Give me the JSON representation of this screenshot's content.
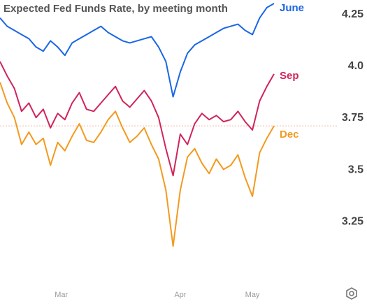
{
  "chart_data": {
    "type": "line",
    "title": "Expected Fed Funds Rate, by meeting month",
    "xlabel": "",
    "ylabel": "",
    "x_ticks": [
      "Mar",
      "Apr",
      "May"
    ],
    "y_ticks": [
      "4.25",
      "4.0",
      "3.75",
      "3.5",
      "3.25"
    ],
    "ylim": [
      3.07,
      4.31
    ],
    "grid": false,
    "reference_line": 3.71,
    "x": [
      0,
      2,
      4,
      6,
      8,
      10,
      12,
      14,
      16,
      18,
      20,
      22,
      24,
      26,
      28,
      30,
      32,
      34,
      36,
      38,
      40,
      42,
      44,
      46,
      48,
      50,
      52,
      54,
      56,
      58,
      60,
      62,
      64,
      66,
      68,
      70,
      72,
      74,
      76
    ],
    "series": [
      {
        "name": "June",
        "color": "#1a66e5",
        "values": [
          4.23,
          4.19,
          4.17,
          4.15,
          4.13,
          4.09,
          4.07,
          4.12,
          4.09,
          4.05,
          4.11,
          4.13,
          4.15,
          4.17,
          4.19,
          4.16,
          4.14,
          4.12,
          4.11,
          4.12,
          4.13,
          4.14,
          4.09,
          4.02,
          3.85,
          3.97,
          4.06,
          4.1,
          4.12,
          4.14,
          4.16,
          4.18,
          4.19,
          4.2,
          4.17,
          4.15,
          4.23,
          4.28,
          4.3
        ]
      },
      {
        "name": "Sep",
        "color": "#d0245a",
        "values": [
          4.02,
          3.95,
          3.89,
          3.78,
          3.82,
          3.75,
          3.79,
          3.7,
          3.77,
          3.74,
          3.82,
          3.87,
          3.79,
          3.78,
          3.82,
          3.86,
          3.9,
          3.83,
          3.8,
          3.84,
          3.88,
          3.83,
          3.75,
          3.6,
          3.47,
          3.67,
          3.62,
          3.72,
          3.77,
          3.74,
          3.76,
          3.73,
          3.74,
          3.78,
          3.73,
          3.69,
          3.83,
          3.9,
          3.96
        ]
      },
      {
        "name": "Dec",
        "color": "#f39a1e",
        "values": [
          3.92,
          3.82,
          3.75,
          3.62,
          3.68,
          3.62,
          3.65,
          3.52,
          3.63,
          3.59,
          3.66,
          3.72,
          3.64,
          3.63,
          3.68,
          3.74,
          3.78,
          3.7,
          3.63,
          3.66,
          3.7,
          3.62,
          3.55,
          3.4,
          3.13,
          3.4,
          3.56,
          3.6,
          3.53,
          3.48,
          3.55,
          3.5,
          3.52,
          3.57,
          3.46,
          3.37,
          3.58,
          3.65,
          3.71
        ]
      }
    ]
  }
}
